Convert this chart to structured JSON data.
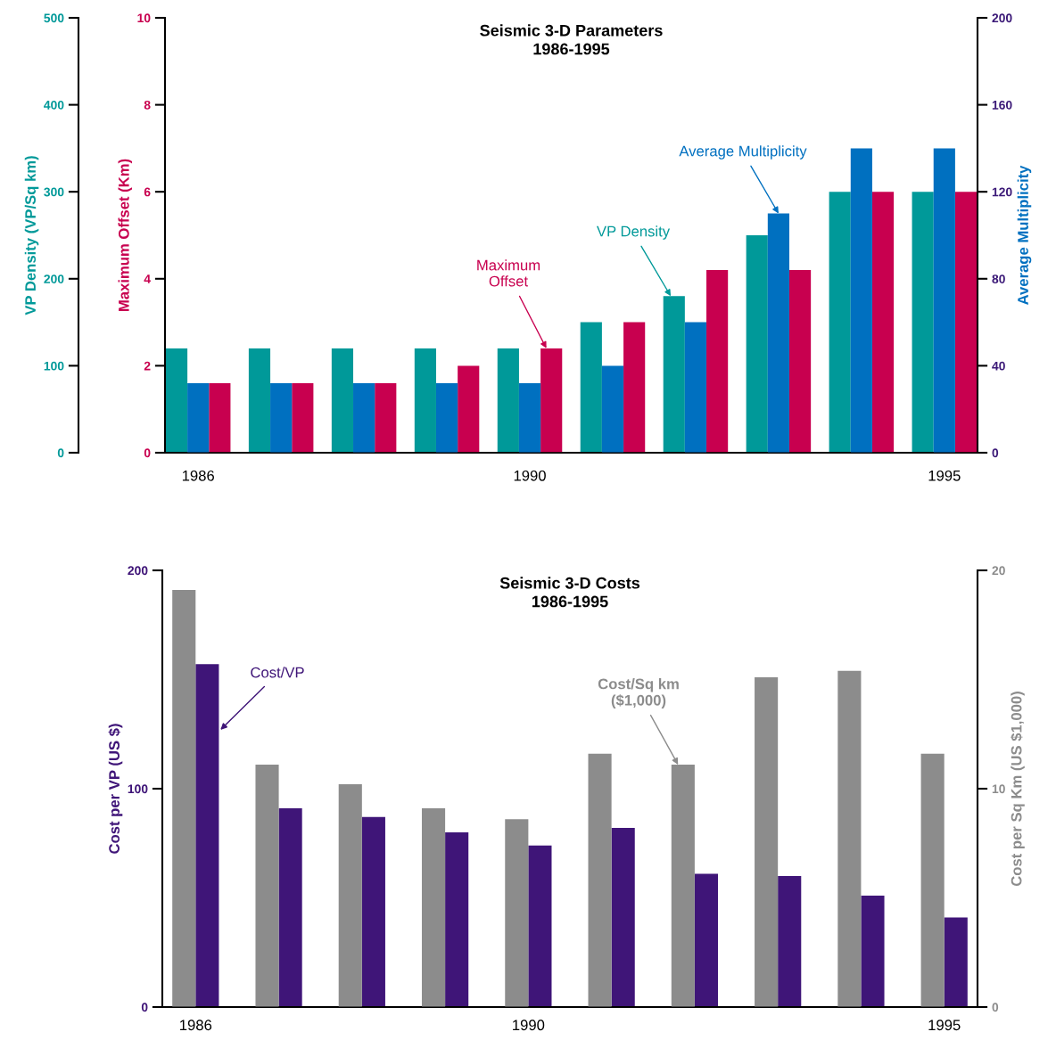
{
  "chart_data": [
    {
      "type": "bar",
      "title": "Seismic 3-D Parameters\n1986-1995",
      "x": [
        1986,
        1987,
        1988,
        1989,
        1990,
        1991,
        1992,
        1993,
        1994,
        1995
      ],
      "xlim": [
        1985.6,
        1995.4
      ],
      "xticks": [
        1986,
        1990,
        1995
      ],
      "ylabel": "VP Density (VP/Sq km)",
      "ylim": [
        0,
        500
      ],
      "yticks": [
        0,
        100,
        200,
        300,
        400,
        500
      ],
      "y2label": "Maximum Offset (Km)",
      "y2lim": [
        0,
        10
      ],
      "y2ticks": [
        0,
        2,
        4,
        6,
        8,
        10
      ],
      "y3label": "Average Multiplicity",
      "y3lim": [
        0,
        200
      ],
      "y3ticks": [
        0,
        40,
        80,
        120,
        160,
        200
      ],
      "grid": false,
      "series": [
        {
          "color": "#009999",
          "axis": "y",
          "values": [
            120,
            120,
            120,
            120,
            120,
            150,
            180,
            250,
            300,
            300
          ]
        },
        {
          "color": "#0070c0",
          "axis": "y3",
          "values": [
            32,
            32,
            32,
            32,
            32,
            40,
            60,
            110,
            140,
            140
          ]
        },
        {
          "color": "#c8004f",
          "axis": "y2",
          "values": [
            1.6,
            1.6,
            1.6,
            2.0,
            2.4,
            3.0,
            4.2,
            4.2,
            6.0,
            6.0
          ]
        }
      ],
      "annotations": [
        {
          "text": "VP Density",
          "x": 1991.7,
          "y": 180
        },
        {
          "text": "Average Multiplicity",
          "x": 1993,
          "y": 275
        },
        {
          "text": "Maximum\nOffset",
          "x": 1990.2,
          "y": 120
        }
      ]
    },
    {
      "type": "bar",
      "title": "Seismic 3-D Costs\n1986-1995",
      "x": [
        1986,
        1987,
        1988,
        1989,
        1990,
        1991,
        1992,
        1993,
        1994,
        1995
      ],
      "xlim": [
        1985.6,
        1995.4
      ],
      "xticks": [
        1986,
        1990,
        1995
      ],
      "ylabel": "Cost per VP (US $)",
      "ylim": [
        0,
        200
      ],
      "yticks": [
        0,
        100,
        200
      ],
      "y2label": "Cost per Sq Km (US $1,000)",
      "y2lim": [
        0,
        20
      ],
      "y2ticks": [
        0,
        10,
        20
      ],
      "grid": false,
      "series": [
        {
          "color": "#8c8c8c",
          "axis": "y2",
          "values": [
            19.1,
            11.1,
            10.2,
            9.1,
            8.6,
            11.6,
            11.1,
            15.1,
            15.4,
            11.6
          ]
        },
        {
          "color": "#3f1578",
          "axis": "y",
          "values": [
            157,
            91,
            87,
            80,
            74,
            82,
            61,
            60,
            51,
            41
          ]
        }
      ],
      "annotations": [
        {
          "text": "Cost/Sq km\n($1,000)",
          "x": 1991.8,
          "y": 111
        },
        {
          "text": "Cost/VP",
          "x": 1986.3,
          "y": 127
        }
      ]
    }
  ]
}
